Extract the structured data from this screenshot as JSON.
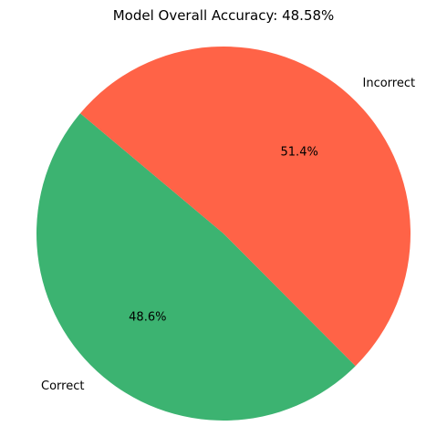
{
  "chart_data": {
    "type": "pie",
    "title": "Model Overall Accuracy: 48.58%",
    "slices": [
      {
        "label": "Correct",
        "value": 48.58,
        "pct_label": "48.6%",
        "color": "#3CB371"
      },
      {
        "label": "Incorrect",
        "value": 51.42,
        "pct_label": "51.4%",
        "color": "#FF6347"
      }
    ],
    "start_angle_deg": 140,
    "direction": "counterclockwise"
  }
}
